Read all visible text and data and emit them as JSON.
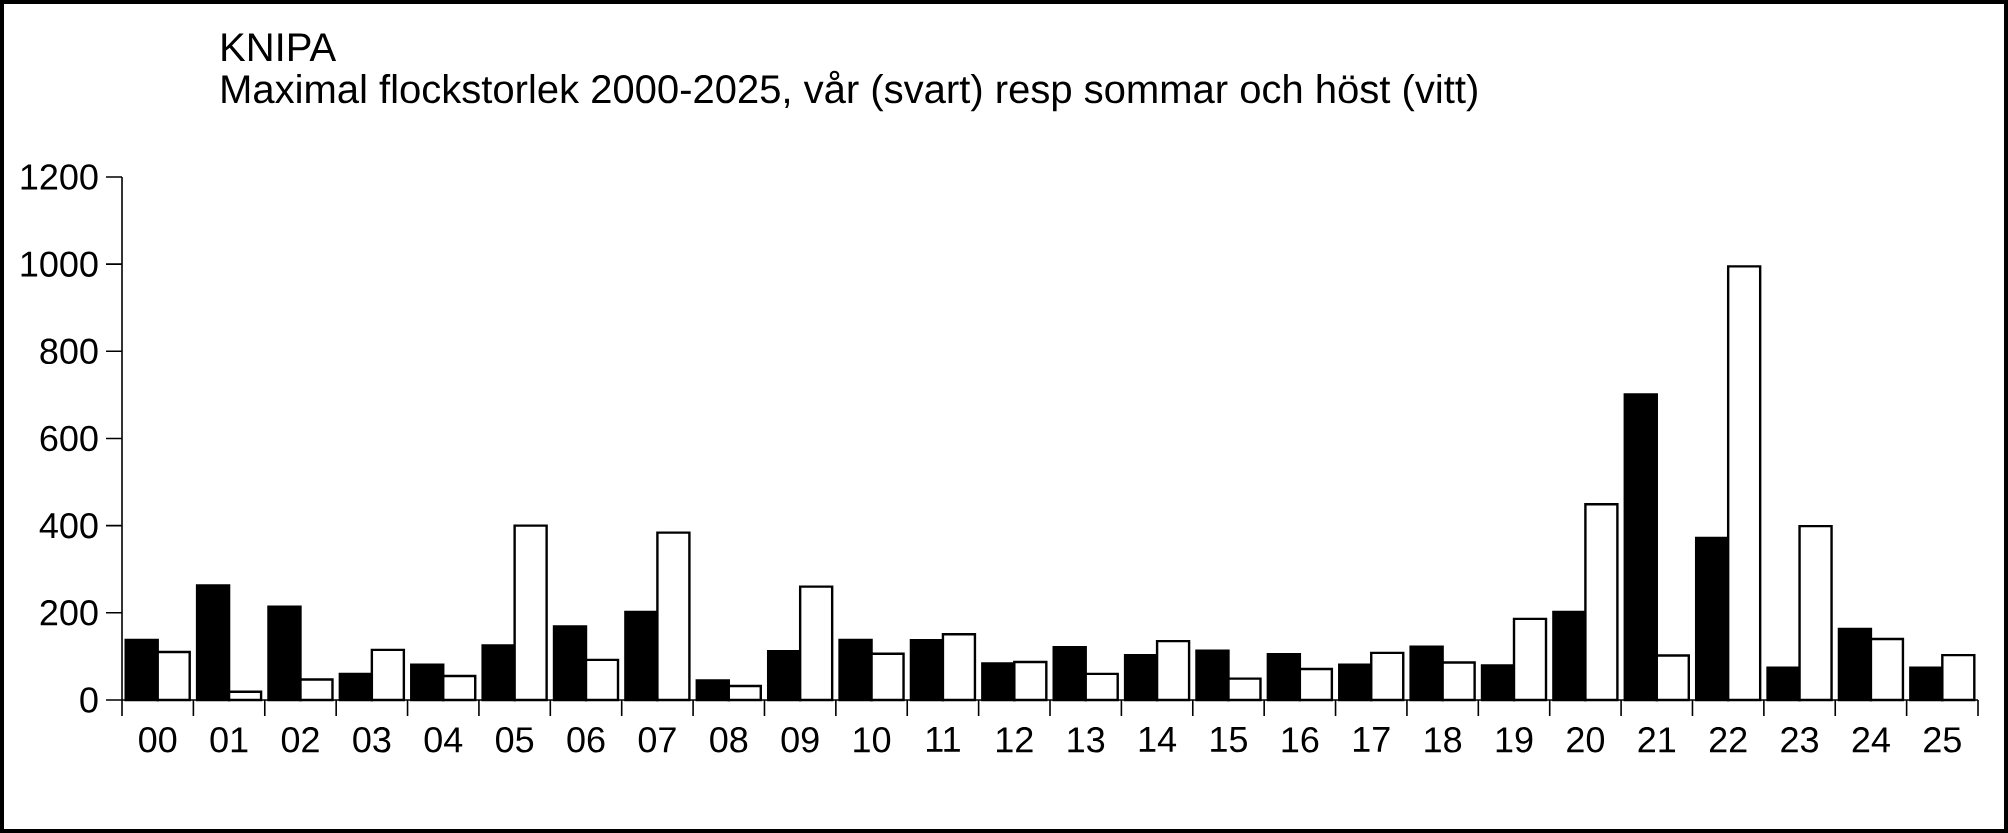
{
  "chart_data": {
    "type": "bar",
    "title": "KNIPA",
    "subtitle": "Maximal flockstorlek 2000-2025, vår (svart) resp sommar och höst (vitt)",
    "categories": [
      "00",
      "01",
      "02",
      "03",
      "04",
      "05",
      "06",
      "07",
      "08",
      "09",
      "10",
      "11",
      "12",
      "13",
      "14",
      "15",
      "16",
      "17",
      "18",
      "19",
      "20",
      "21",
      "22",
      "23",
      "24",
      "25"
    ],
    "series": [
      {
        "color": "#000000",
        "values": [
          138,
          263,
          214,
          60,
          81,
          125,
          169,
          202,
          45,
          112,
          138,
          137,
          84,
          121,
          103,
          113,
          105,
          81,
          122,
          79,
          202,
          701,
          372,
          74,
          163,
          74
        ]
      },
      {
        "color": "#ffffff",
        "values": [
          110,
          19,
          47,
          115,
          55,
          400,
          92,
          384,
          32,
          260,
          106,
          151,
          87,
          60,
          135,
          49,
          71,
          108,
          86,
          186,
          449,
          102,
          995,
          399,
          140,
          103
        ]
      }
    ],
    "ylim": [
      0,
      1200
    ],
    "yticks": [
      0,
      200,
      400,
      600,
      800,
      1000,
      1200
    ]
  }
}
